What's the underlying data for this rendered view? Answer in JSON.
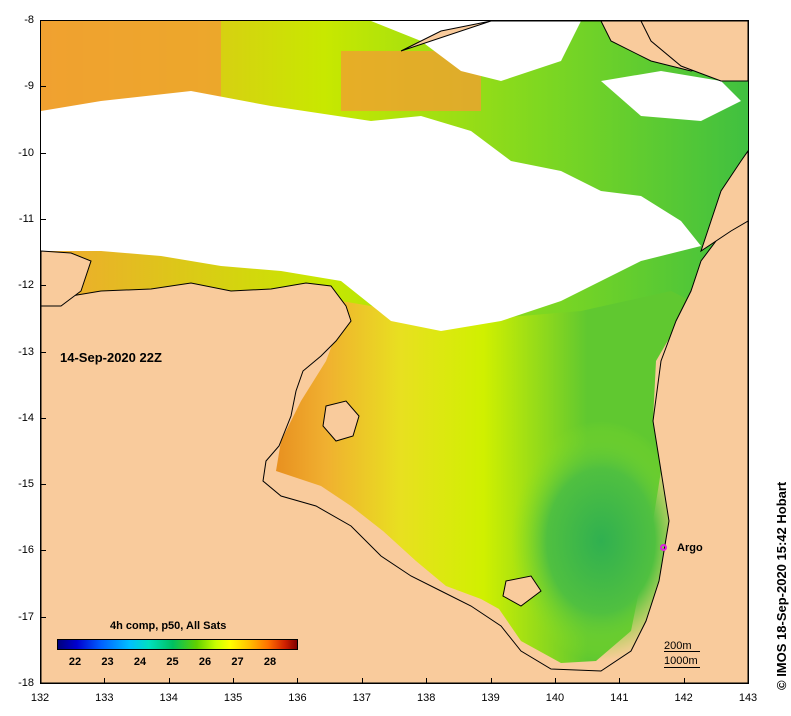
{
  "map": {
    "timestamp": "14-Sep-2020 22Z",
    "x_ticks": [
      "132",
      "133",
      "134",
      "135",
      "136",
      "137",
      "138",
      "139",
      "140",
      "141",
      "142",
      "143"
    ],
    "y_ticks": [
      "-8",
      "-9",
      "-10",
      "-11",
      "-12",
      "-13",
      "-14",
      "-15",
      "-16",
      "-17",
      "-18"
    ],
    "land_color": "#f9cb9c",
    "cloud_color": "#ffffff"
  },
  "colorbar": {
    "title": "4h comp, p50, All Sats",
    "labels": [
      "22",
      "23",
      "24",
      "25",
      "26",
      "27",
      "28"
    ]
  },
  "marker": {
    "label": "Argo",
    "color": "#e020e0",
    "longitude": 141.7,
    "latitude": -16.0
  },
  "scale": {
    "top": "200m",
    "bottom": "1000m"
  },
  "credit": "© IMOS 18-Sep-2020 15:42 Hobart"
}
